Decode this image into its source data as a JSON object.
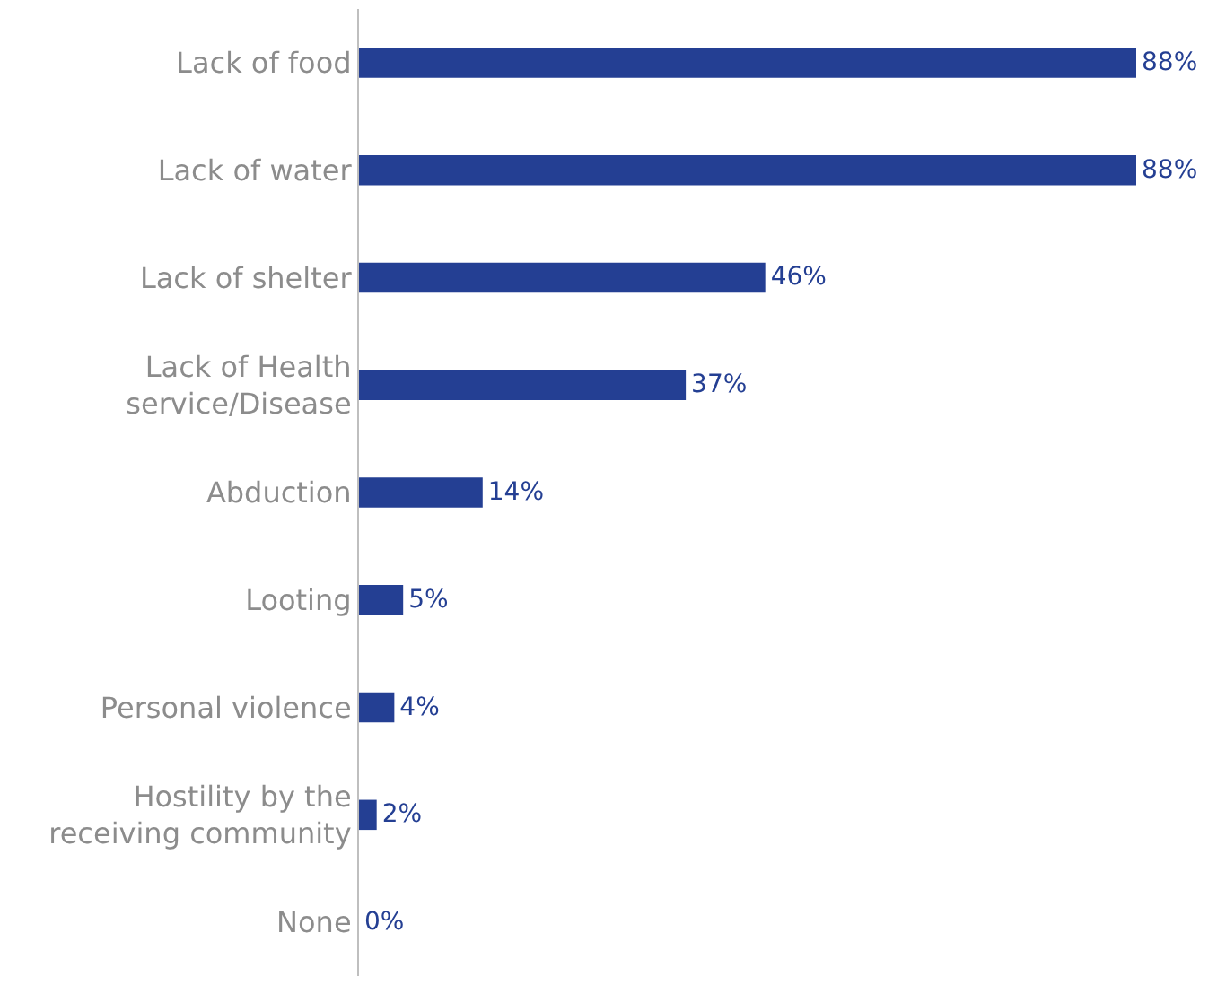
{
  "chart_data": {
    "type": "bar",
    "orientation": "horizontal",
    "categories": [
      "Lack of food",
      "Lack of water",
      "Lack of shelter",
      "Lack of Health service/Disease",
      "Abduction",
      "Looting",
      "Personal violence",
      "Hostility by the receiving community",
      "None"
    ],
    "values": [
      88,
      88,
      46,
      37,
      14,
      5,
      4,
      2,
      0
    ],
    "value_labels": [
      "88%",
      "88%",
      "46%",
      "37%",
      "14%",
      "5%",
      "4%",
      "2%",
      "0%"
    ],
    "color": "#243f93"
  }
}
